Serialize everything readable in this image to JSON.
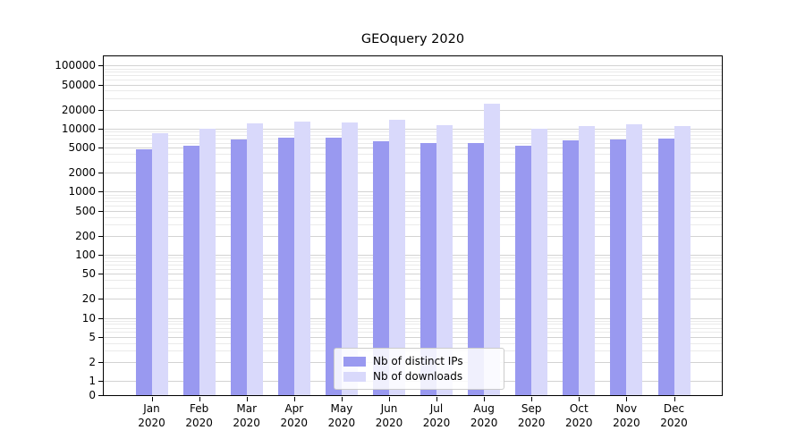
{
  "chart_data": {
    "type": "bar",
    "title": "GEOquery 2020",
    "categories": [
      "Jan",
      "Feb",
      "Mar",
      "Apr",
      "May",
      "Jun",
      "Jul",
      "Aug",
      "Sep",
      "Oct",
      "Nov",
      "Dec"
    ],
    "x_year": "2020",
    "series": [
      {
        "key": "distinct-ips",
        "name": "Nb of distinct IPs",
        "color": "#9999f0",
        "values": [
          4700,
          5400,
          6700,
          7100,
          7200,
          6300,
          5900,
          5900,
          5450,
          6450,
          6750,
          6900
        ]
      },
      {
        "key": "downloads",
        "name": "Nb of downloads",
        "color": "#d9d9fb",
        "values": [
          8400,
          10000,
          12300,
          12900,
          12400,
          13600,
          11500,
          24500,
          9900,
          11100,
          11600,
          11000
        ]
      }
    ],
    "y_axis": {
      "scale": "symlog",
      "min": 0,
      "max": 140000,
      "linear_fraction": 0.042,
      "ticks": [
        0,
        1,
        2,
        5,
        10,
        20,
        50,
        100,
        200,
        500,
        1000,
        2000,
        5000,
        10000,
        20000,
        50000,
        100000
      ]
    },
    "grid": true,
    "legend_position": "bottom-center"
  }
}
